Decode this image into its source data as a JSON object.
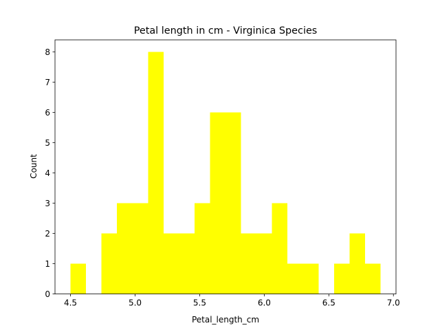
{
  "chart_data": {
    "type": "bar",
    "title": "Petal length in cm - Virginica Species",
    "xlabel": "Petal_length_cm",
    "ylabel": "Count",
    "bins": [
      {
        "start": 4.5,
        "end": 4.62,
        "count": 1
      },
      {
        "start": 4.62,
        "end": 4.74,
        "count": 0
      },
      {
        "start": 4.74,
        "end": 4.86,
        "count": 2
      },
      {
        "start": 4.86,
        "end": 4.98,
        "count": 3
      },
      {
        "start": 4.98,
        "end": 5.1,
        "count": 3
      },
      {
        "start": 5.1,
        "end": 5.22,
        "count": 8
      },
      {
        "start": 5.22,
        "end": 5.34,
        "count": 2
      },
      {
        "start": 5.34,
        "end": 5.46,
        "count": 2
      },
      {
        "start": 5.46,
        "end": 5.58,
        "count": 3
      },
      {
        "start": 5.58,
        "end": 5.7,
        "count": 6
      },
      {
        "start": 5.7,
        "end": 5.82,
        "count": 6
      },
      {
        "start": 5.82,
        "end": 5.94,
        "count": 2
      },
      {
        "start": 5.94,
        "end": 6.06,
        "count": 2
      },
      {
        "start": 6.06,
        "end": 6.18,
        "count": 3
      },
      {
        "start": 6.18,
        "end": 6.3,
        "count": 1
      },
      {
        "start": 6.3,
        "end": 6.42,
        "count": 1
      },
      {
        "start": 6.42,
        "end": 6.54,
        "count": 0
      },
      {
        "start": 6.54,
        "end": 6.66,
        "count": 1
      },
      {
        "start": 6.66,
        "end": 6.78,
        "count": 2
      },
      {
        "start": 6.78,
        "end": 6.9,
        "count": 1
      }
    ],
    "xlim": [
      4.38,
      7.02
    ],
    "ylim": [
      0,
      8.4
    ],
    "xticks": [
      4.5,
      5.0,
      5.5,
      6.0,
      6.5,
      7.0
    ],
    "xtick_labels": [
      "4.5",
      "5.0",
      "5.5",
      "6.0",
      "6.5",
      "7.0"
    ],
    "yticks": [
      0,
      1,
      2,
      3,
      4,
      5,
      6,
      7,
      8
    ],
    "ytick_labels": [
      "0",
      "1",
      "2",
      "3",
      "4",
      "5",
      "6",
      "7",
      "8"
    ],
    "bar_color": "#ffff00",
    "grid": false,
    "legend": "none"
  }
}
